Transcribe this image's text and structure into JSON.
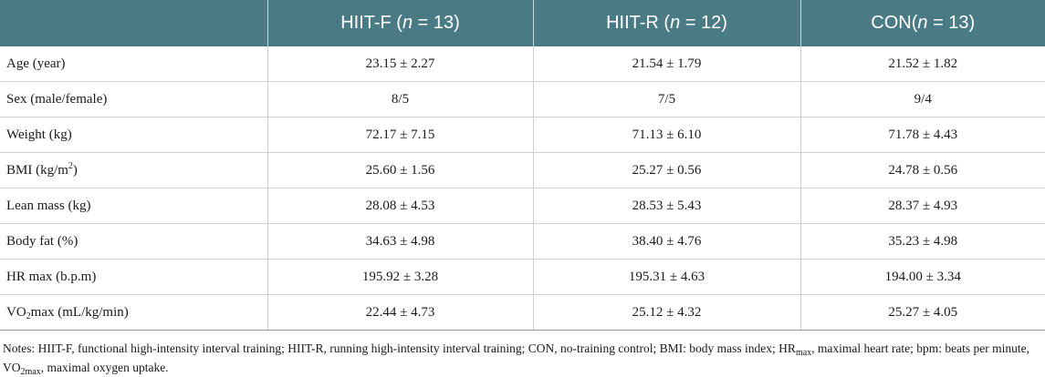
{
  "header": {
    "col0": "",
    "groups": [
      {
        "name": "HIIT-F (",
        "n_label": "n",
        "n_value": " = 13)"
      },
      {
        "name": "HIIT-R (",
        "n_label": "n",
        "n_value": " = 12)"
      },
      {
        "name": "CON(",
        "n_label": "n",
        "n_value": " = 13)"
      }
    ]
  },
  "rows": [
    {
      "label": "Age (year)",
      "values": [
        "23.15 ± 2.27",
        "21.54 ± 1.79",
        "21.52 ± 1.82"
      ]
    },
    {
      "label": "Sex (male/female)",
      "values": [
        "8/5",
        "7/5",
        "9/4"
      ]
    },
    {
      "label": "Weight (kg)",
      "values": [
        "72.17 ± 7.15",
        "71.13 ± 6.10",
        "71.78 ± 4.43"
      ]
    },
    {
      "label": "BMI (kg/m",
      "label_sup": "2",
      "label_after": ")",
      "values": [
        "25.60 ± 1.56",
        "25.27 ± 0.56",
        "24.78 ± 0.56"
      ]
    },
    {
      "label": "Lean mass (kg)",
      "values": [
        "28.08 ± 4.53",
        "28.53 ± 5.43",
        "28.37 ± 4.93"
      ]
    },
    {
      "label": "Body fat (%)",
      "values": [
        "34.63 ± 4.98",
        "38.40 ± 4.76",
        "35.23 ± 4.98"
      ]
    },
    {
      "label": "HR max (b.p.m)",
      "values": [
        "195.92 ± 3.28",
        "195.31 ± 4.63",
        "194.00 ± 3.34"
      ]
    },
    {
      "label": "VO",
      "label_sub": "2",
      "label_after": "max (mL/kg/min)",
      "values": [
        "22.44 ± 4.73",
        "25.12 ± 4.32",
        "25.27 ± 4.05"
      ]
    }
  ],
  "notes": {
    "part1": "Notes: HIIT-F, functional high-intensity interval training; HIIT-R, running high-intensity interval training; CON, no-training control; BMI: body mass index; HR",
    "sub1": "max",
    "part2": ", maximal heart rate; bpm: beats per minute, VO",
    "sub2": "2max",
    "part3": ", maximal oxygen uptake."
  }
}
